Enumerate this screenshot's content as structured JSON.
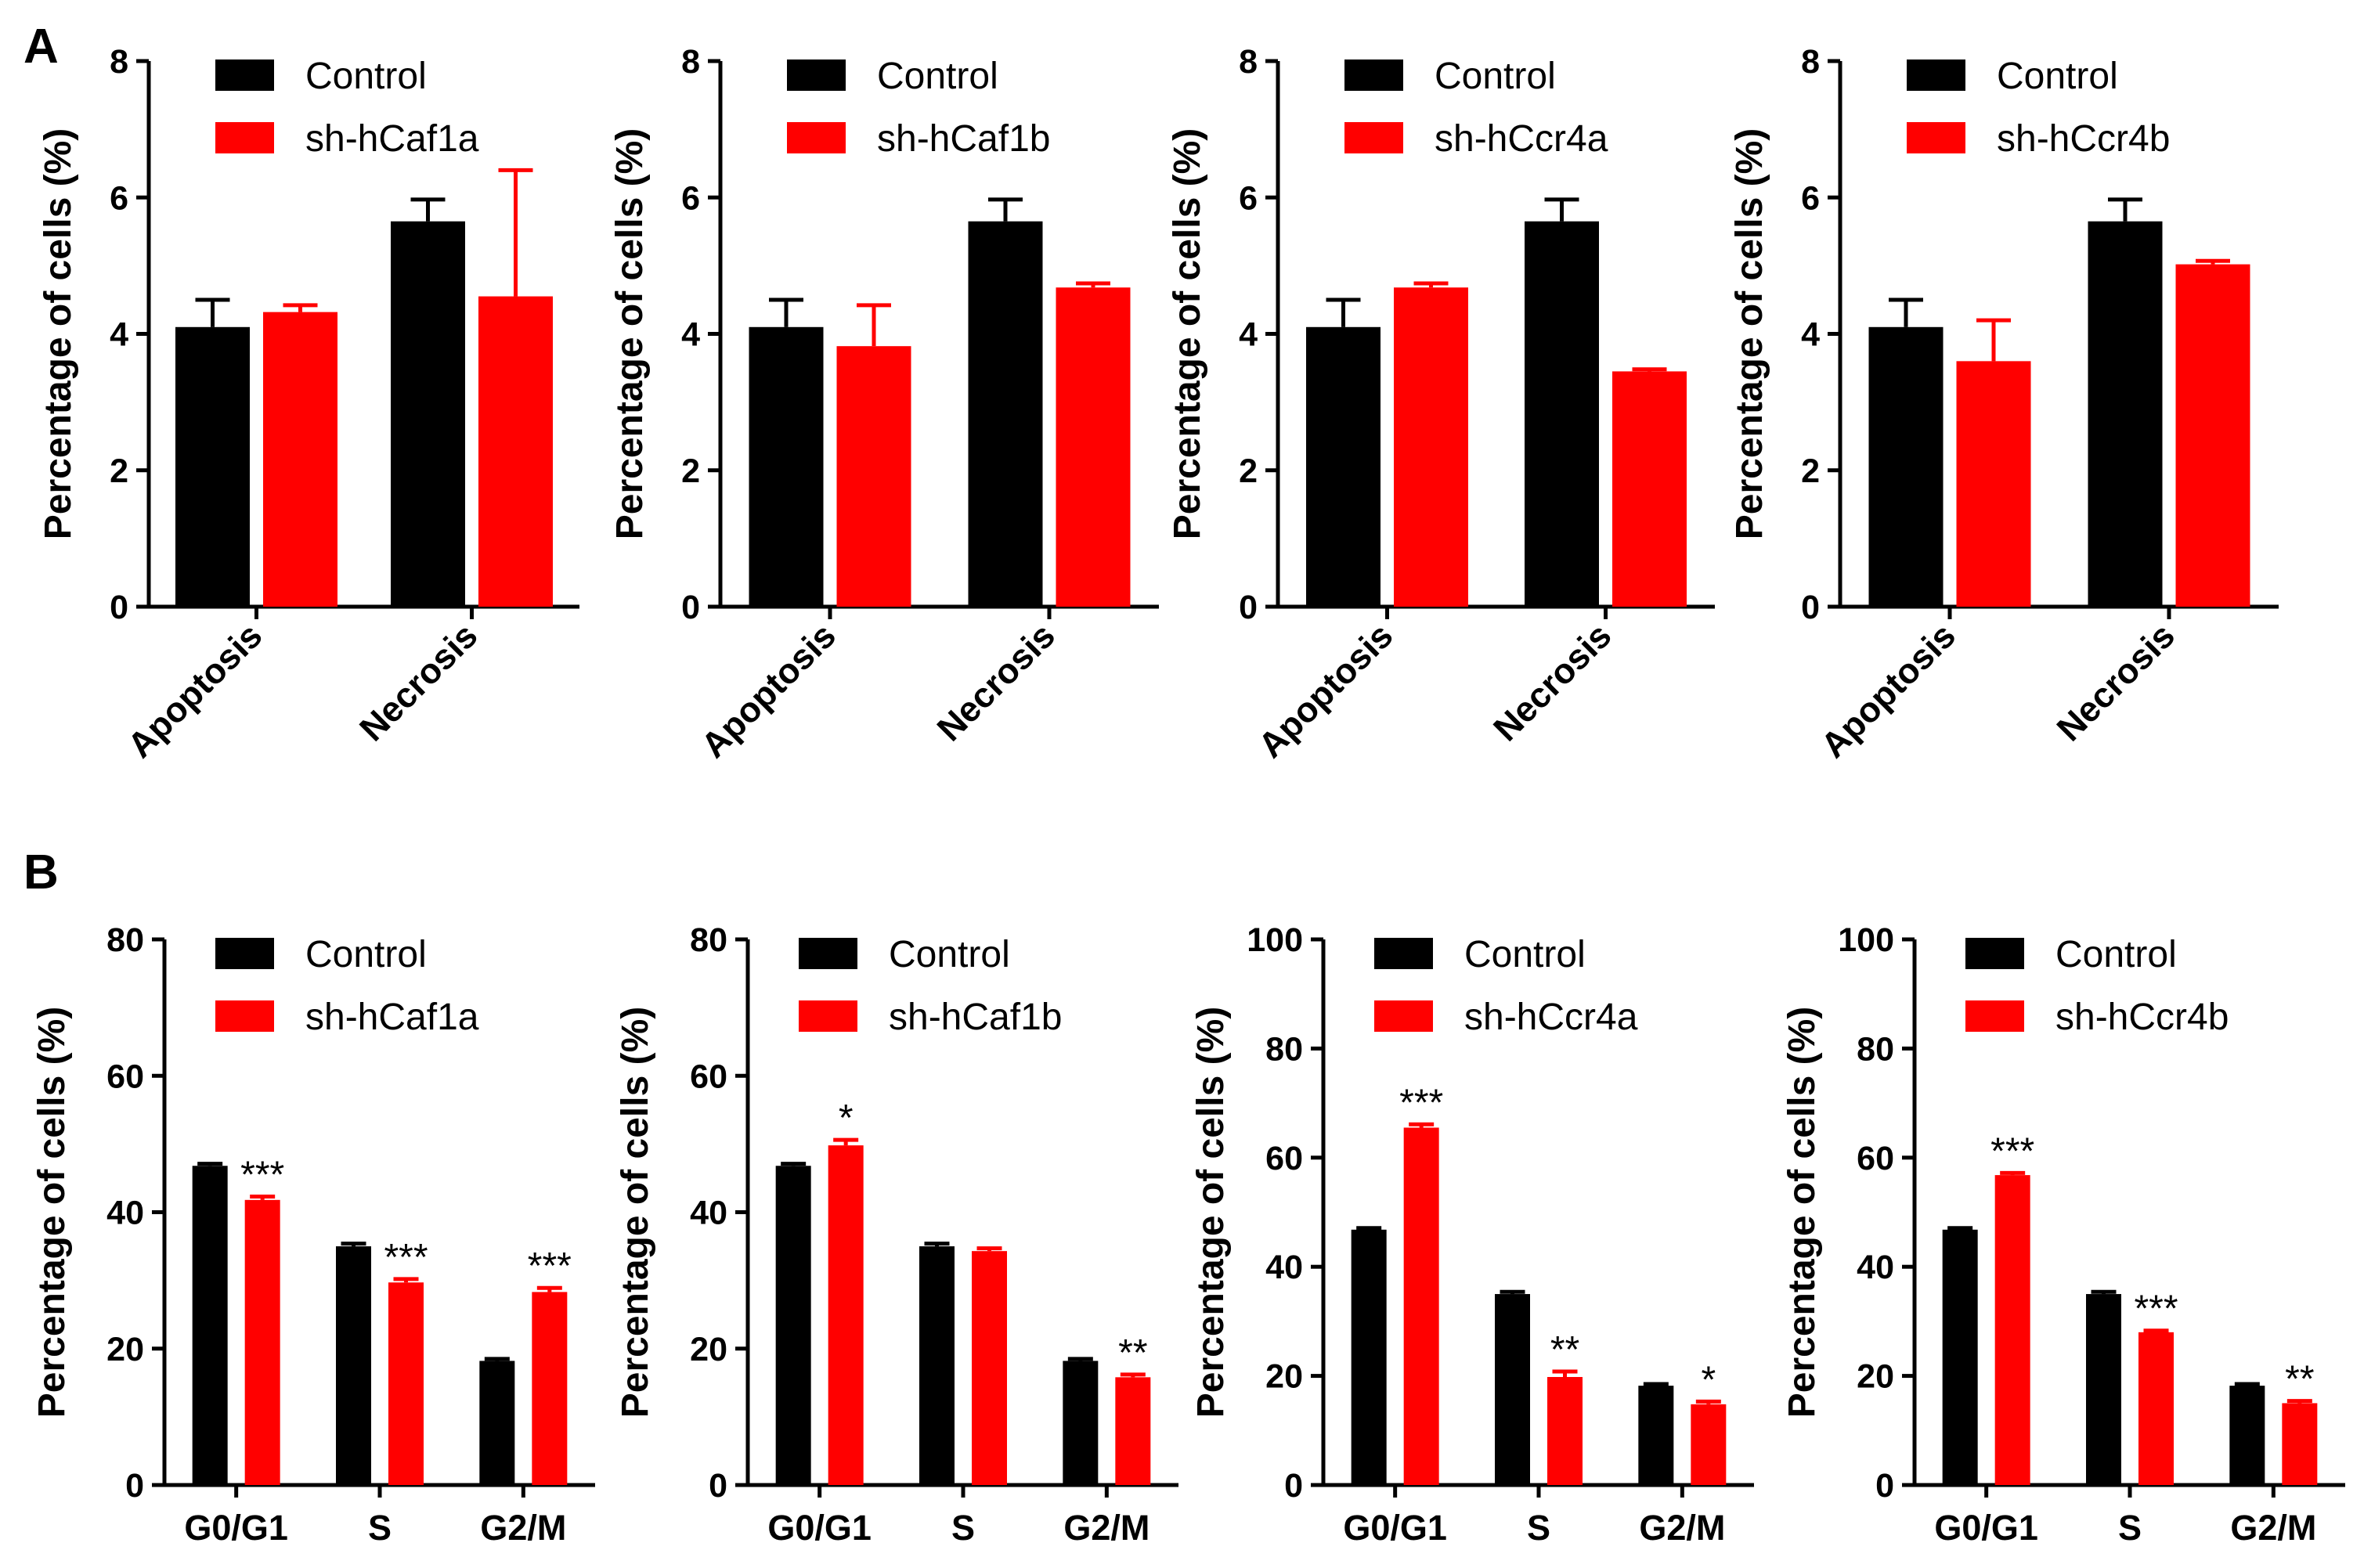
{
  "panel_labels": [
    "A",
    "B"
  ],
  "colors": {
    "control": "#000000",
    "knockdown": "#ff0000"
  },
  "chart_data": [
    {
      "panel": "A",
      "type": "bar",
      "ylabel": "Percentage of cells (%)",
      "ylim": [
        0,
        8
      ],
      "yticks": [
        0,
        2,
        4,
        6,
        8
      ],
      "categories": [
        "Apoptosis",
        "Necrosis"
      ],
      "series": [
        {
          "name": "Control",
          "values": [
            4.1,
            5.65
          ],
          "errors": [
            0.4,
            0.32
          ]
        },
        {
          "name": "sh-hCaf1a",
          "values": [
            4.32,
            4.55
          ],
          "errors": [
            0.1,
            1.85
          ]
        }
      ],
      "significance": [
        "",
        ""
      ]
    },
    {
      "panel": "A",
      "type": "bar",
      "ylabel": "Percentage of cells (%)",
      "ylim": [
        0,
        8
      ],
      "yticks": [
        0,
        2,
        4,
        6,
        8
      ],
      "categories": [
        "Apoptosis",
        "Necrosis"
      ],
      "series": [
        {
          "name": "Control",
          "values": [
            4.1,
            5.65
          ],
          "errors": [
            0.4,
            0.32
          ]
        },
        {
          "name": "sh-hCaf1b",
          "values": [
            3.82,
            4.68
          ],
          "errors": [
            0.6,
            0.06
          ]
        }
      ],
      "significance": [
        "",
        ""
      ]
    },
    {
      "panel": "A",
      "type": "bar",
      "ylabel": "Percentage of cells (%)",
      "ylim": [
        0,
        8
      ],
      "yticks": [
        0,
        2,
        4,
        6,
        8
      ],
      "categories": [
        "Apoptosis",
        "Necrosis"
      ],
      "series": [
        {
          "name": "Control",
          "values": [
            4.1,
            5.65
          ],
          "errors": [
            0.4,
            0.32
          ]
        },
        {
          "name": "sh-hCcr4a",
          "values": [
            4.68,
            3.45
          ],
          "errors": [
            0.06,
            0.03
          ]
        }
      ],
      "significance": [
        "",
        ""
      ]
    },
    {
      "panel": "A",
      "type": "bar",
      "ylabel": "Percentage of cells (%)",
      "ylim": [
        0,
        8
      ],
      "yticks": [
        0,
        2,
        4,
        6,
        8
      ],
      "categories": [
        "Apoptosis",
        "Necrosis"
      ],
      "series": [
        {
          "name": "Control",
          "values": [
            4.1,
            5.65
          ],
          "errors": [
            0.4,
            0.32
          ]
        },
        {
          "name": "sh-hCcr4b",
          "values": [
            3.6,
            5.02
          ],
          "errors": [
            0.6,
            0.05
          ]
        }
      ],
      "significance": [
        "",
        ""
      ]
    },
    {
      "panel": "B",
      "type": "bar",
      "ylabel": "Percentage of cells (%)",
      "ylim": [
        0,
        80
      ],
      "yticks": [
        0,
        20,
        40,
        60,
        80
      ],
      "categories": [
        "G0/G1",
        "S",
        "G2/M"
      ],
      "series": [
        {
          "name": "Control",
          "values": [
            46.8,
            35.0,
            18.2
          ],
          "errors": [
            0.3,
            0.4,
            0.3
          ]
        },
        {
          "name": "sh-hCaf1a",
          "values": [
            41.8,
            29.7,
            28.3
          ],
          "errors": [
            0.5,
            0.5,
            0.6
          ]
        }
      ],
      "significance": [
        "***",
        "***",
        "***"
      ]
    },
    {
      "panel": "B",
      "type": "bar",
      "ylabel": "Percentage of cells (%)",
      "ylim": [
        0,
        80
      ],
      "yticks": [
        0,
        20,
        40,
        60,
        80
      ],
      "categories": [
        "G0/G1",
        "S",
        "G2/M"
      ],
      "series": [
        {
          "name": "Control",
          "values": [
            46.8,
            35.0,
            18.2
          ],
          "errors": [
            0.3,
            0.4,
            0.3
          ]
        },
        {
          "name": "sh-hCaf1b",
          "values": [
            49.8,
            34.3,
            15.8
          ],
          "errors": [
            0.8,
            0.4,
            0.4
          ]
        }
      ],
      "significance": [
        "*",
        "",
        "**"
      ]
    },
    {
      "panel": "B",
      "type": "bar",
      "ylabel": "Percentage of cells (%)",
      "ylim": [
        0,
        100
      ],
      "yticks": [
        0,
        20,
        40,
        60,
        80,
        100
      ],
      "categories": [
        "G0/G1",
        "S",
        "G2/M"
      ],
      "series": [
        {
          "name": "Control",
          "values": [
            46.8,
            35.0,
            18.2
          ],
          "errors": [
            0.3,
            0.4,
            0.3
          ]
        },
        {
          "name": "sh-hCcr4a",
          "values": [
            65.5,
            19.8,
            14.8
          ],
          "errors": [
            0.6,
            1.0,
            0.5
          ]
        }
      ],
      "significance": [
        "***",
        "**",
        "*"
      ]
    },
    {
      "panel": "B",
      "type": "bar",
      "ylabel": "Percentage of cells (%)",
      "ylim": [
        0,
        100
      ],
      "yticks": [
        0,
        20,
        40,
        60,
        80,
        100
      ],
      "categories": [
        "G0/G1",
        "S",
        "G2/M"
      ],
      "series": [
        {
          "name": "Control",
          "values": [
            46.8,
            35.0,
            18.2
          ],
          "errors": [
            0.3,
            0.4,
            0.3
          ]
        },
        {
          "name": "sh-hCcr4b",
          "values": [
            56.8,
            28.0,
            15.0
          ],
          "errors": [
            0.4,
            0.3,
            0.4
          ]
        }
      ],
      "significance": [
        "***",
        "***",
        "**"
      ]
    }
  ]
}
